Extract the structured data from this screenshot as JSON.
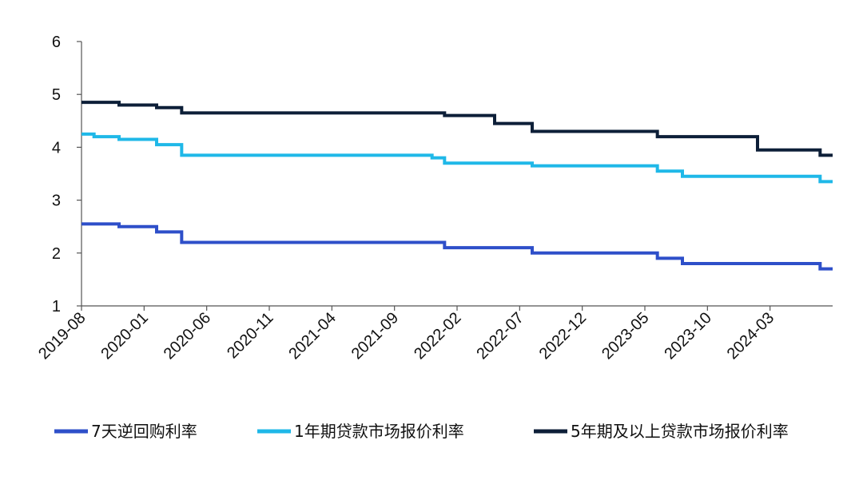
{
  "chart_data": {
    "type": "line",
    "title": "",
    "xlabel": "",
    "ylabel": "",
    "ylim": [
      1,
      6
    ],
    "yticks": [
      "1",
      "2",
      "3",
      "4",
      "5",
      "6"
    ],
    "x_tick_labels": [
      "2019-08",
      "2020-01",
      "2020-06",
      "2020-11",
      "2021-04",
      "2021-09",
      "2022-02",
      "2022-07",
      "2022-12",
      "2023-05",
      "2023-10",
      "2024-03"
    ],
    "x_range": [
      "2019-08",
      "2024-08"
    ],
    "step": true,
    "legend_position": "bottom",
    "series": [
      {
        "name": "7天逆回购利率",
        "color": "#2e4fc9",
        "points": [
          {
            "date": "2019-08",
            "value": 2.55
          },
          {
            "date": "2019-11",
            "value": 2.5
          },
          {
            "date": "2020-02",
            "value": 2.4
          },
          {
            "date": "2020-04",
            "value": 2.2
          },
          {
            "date": "2022-01",
            "value": 2.1
          },
          {
            "date": "2022-08",
            "value": 2.0
          },
          {
            "date": "2023-06",
            "value": 1.9
          },
          {
            "date": "2023-08",
            "value": 1.8
          },
          {
            "date": "2024-07",
            "value": 1.7
          },
          {
            "date": "2024-08",
            "value": 1.7
          }
        ]
      },
      {
        "name": "1年期贷款市场报价利率",
        "color": "#1fb8e8",
        "points": [
          {
            "date": "2019-08",
            "value": 4.25
          },
          {
            "date": "2019-09",
            "value": 4.2
          },
          {
            "date": "2019-11",
            "value": 4.15
          },
          {
            "date": "2020-02",
            "value": 4.05
          },
          {
            "date": "2020-04",
            "value": 3.85
          },
          {
            "date": "2021-12",
            "value": 3.8
          },
          {
            "date": "2022-01",
            "value": 3.7
          },
          {
            "date": "2022-08",
            "value": 3.65
          },
          {
            "date": "2023-06",
            "value": 3.55
          },
          {
            "date": "2023-08",
            "value": 3.45
          },
          {
            "date": "2024-07",
            "value": 3.35
          },
          {
            "date": "2024-08",
            "value": 3.35
          }
        ]
      },
      {
        "name": "5年期及以上贷款市场报价利率",
        "color": "#0d1f38",
        "points": [
          {
            "date": "2019-08",
            "value": 4.85
          },
          {
            "date": "2019-11",
            "value": 4.8
          },
          {
            "date": "2020-02",
            "value": 4.75
          },
          {
            "date": "2020-04",
            "value": 4.65
          },
          {
            "date": "2022-01",
            "value": 4.6
          },
          {
            "date": "2022-05",
            "value": 4.45
          },
          {
            "date": "2022-08",
            "value": 4.3
          },
          {
            "date": "2023-06",
            "value": 4.2
          },
          {
            "date": "2024-02",
            "value": 3.95
          },
          {
            "date": "2024-07",
            "value": 3.85
          },
          {
            "date": "2024-08",
            "value": 3.85
          }
        ]
      }
    ]
  }
}
